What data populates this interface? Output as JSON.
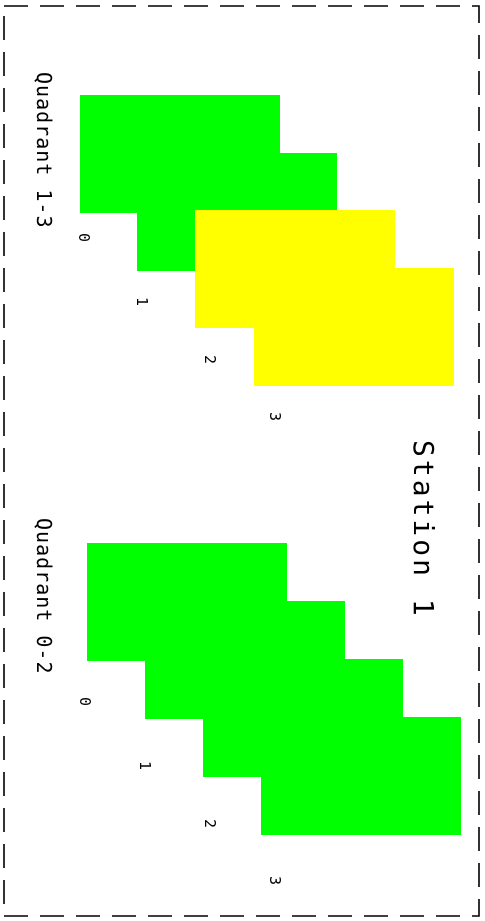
{
  "station": {
    "title": "Station 1"
  },
  "quadrants": [
    {
      "label": "Quadrant 1-3",
      "chambers": [
        {
          "index": "0",
          "color": "#00ff00"
        },
        {
          "index": "1",
          "color": "#00ff00"
        },
        {
          "index": "2",
          "color": "#ffff00"
        },
        {
          "index": "3",
          "color": "#ffff00"
        }
      ]
    },
    {
      "label": "Quadrant 0-2",
      "chambers": [
        {
          "index": "0",
          "color": "#00ff00"
        },
        {
          "index": "1",
          "color": "#00ff00"
        },
        {
          "index": "2",
          "color": "#00ff00"
        },
        {
          "index": "3",
          "color": "#00ff00"
        }
      ]
    }
  ],
  "colors": {
    "border": "#000000",
    "background": "#ffffff"
  }
}
